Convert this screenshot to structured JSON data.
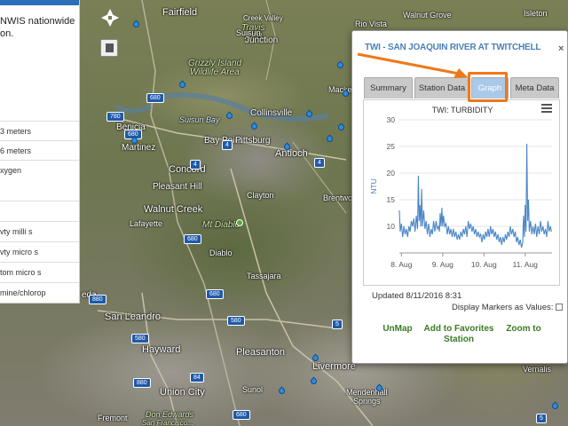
{
  "left_panel": {
    "intro_line1": "NWIS nationwide",
    "intro_line2": "on.",
    "rows": [
      "3 meters",
      "6 meters",
      "xygen",
      "",
      "vty milli s",
      "vty micro s",
      "tom micro s",
      "mine/chlorop"
    ]
  },
  "map": {
    "labels": [
      {
        "text": "Fairfield",
        "cls": ""
      },
      {
        "text": "Travis",
        "cls": "green"
      },
      {
        "text": "AFB",
        "cls": "green"
      },
      {
        "text": "Junction",
        "cls": ""
      },
      {
        "text": "Grizzly Island",
        "cls": "green"
      },
      {
        "text": "Wildlife Area",
        "cls": "green"
      },
      {
        "text": "Suisun Bay",
        "cls": "water"
      },
      {
        "text": "Collinsville",
        "cls": ""
      },
      {
        "text": "Benicia",
        "cls": ""
      },
      {
        "text": "Martinez",
        "cls": ""
      },
      {
        "text": "Bay Point",
        "cls": ""
      },
      {
        "text": "Pittsburg",
        "cls": ""
      },
      {
        "text": "Antioch",
        "cls": ""
      },
      {
        "text": "Concord",
        "cls": ""
      },
      {
        "text": "Pleasant Hill",
        "cls": ""
      },
      {
        "text": "Walnut Creek",
        "cls": ""
      },
      {
        "text": "Lafayette",
        "cls": ""
      },
      {
        "text": "Mt Diablo",
        "cls": "green"
      },
      {
        "text": "Diablo",
        "cls": ""
      },
      {
        "text": "Clayton",
        "cls": ""
      },
      {
        "text": "Tassajara",
        "cls": ""
      },
      {
        "text": "Brentwo",
        "cls": ""
      },
      {
        "text": "Mackey",
        "cls": ""
      },
      {
        "text": "Walnut Grove",
        "cls": ""
      },
      {
        "text": "Isleton",
        "cls": ""
      },
      {
        "text": "Rio Vista",
        "cls": ""
      },
      {
        "text": "eda",
        "cls": ""
      },
      {
        "text": "San Leandro",
        "cls": ""
      },
      {
        "text": "Hayward",
        "cls": ""
      },
      {
        "text": "Pleasanton",
        "cls": ""
      },
      {
        "text": "Livermore",
        "cls": ""
      },
      {
        "text": "Union City",
        "cls": ""
      },
      {
        "text": "Sunol",
        "cls": ""
      },
      {
        "text": "Mendenhall",
        "cls": ""
      },
      {
        "text": "Springs",
        "cls": ""
      },
      {
        "text": "Don Edwards",
        "cls": "green"
      },
      {
        "text": "San Francisco...",
        "cls": "green"
      },
      {
        "text": "Vernalis",
        "cls": ""
      },
      {
        "text": "Fremont",
        "cls": ""
      },
      {
        "text": "Creek Valley",
        "cls": ""
      },
      {
        "text": "Suisun",
        "cls": ""
      }
    ],
    "shields": [
      "680",
      "780",
      "680",
      "4",
      "4",
      "680",
      "880",
      "580",
      "680",
      "580",
      "880",
      "84",
      "680",
      "5",
      "4",
      "5"
    ]
  },
  "popup": {
    "title": "TWI - SAN JOAQUIN RIVER AT TWITCHELL",
    "close_label": "×",
    "tabs": [
      "Summary",
      "Station Data",
      "Graph",
      "Meta Data"
    ],
    "active_tab": "Graph",
    "highlight_color": "#f07818",
    "updated": "Updated 8/11/2016 8:31",
    "display_markers_label": "Display Markers as Values:",
    "links": {
      "unmap": "UnMap",
      "favorites_line1": "Add to Favorites",
      "favorites_line2": "Station",
      "zoom_line1": "Zoom to",
      "zoom_line2": ""
    }
  },
  "chart_data": {
    "type": "line",
    "title": "TWI: TURBIDITY",
    "xlabel": "",
    "ylabel": "NTU",
    "ylim": [
      5,
      30
    ],
    "yticks": [
      10,
      15,
      20,
      25,
      30
    ],
    "xticks": [
      {
        "label": "8. Aug",
        "day": 8
      },
      {
        "label": "9. Aug",
        "day": 9
      },
      {
        "label": "10. Aug",
        "day": 10
      },
      {
        "label": "11. Aug",
        "day": 11
      }
    ],
    "xlim_day": [
      7.95,
      11.65
    ],
    "line_color": "#4a86c8",
    "grid": true,
    "series": [
      {
        "name": "",
        "points": [
          [
            7.95,
            13
          ],
          [
            7.97,
            9
          ],
          [
            8.0,
            10.5
          ],
          [
            8.03,
            8
          ],
          [
            8.06,
            10
          ],
          [
            8.09,
            8.5
          ],
          [
            8.12,
            9.5
          ],
          [
            8.15,
            8
          ],
          [
            8.18,
            10
          ],
          [
            8.21,
            9
          ],
          [
            8.24,
            11
          ],
          [
            8.27,
            10
          ],
          [
            8.3,
            11.5
          ],
          [
            8.33,
            9
          ],
          [
            8.36,
            12
          ],
          [
            8.39,
            9.5
          ],
          [
            8.41,
            19.5
          ],
          [
            8.43,
            11
          ],
          [
            8.45,
            14
          ],
          [
            8.47,
            10
          ],
          [
            8.49,
            17
          ],
          [
            8.51,
            10
          ],
          [
            8.54,
            13
          ],
          [
            8.57,
            9.5
          ],
          [
            8.6,
            11
          ],
          [
            8.63,
            8.5
          ],
          [
            8.66,
            10.5
          ],
          [
            8.69,
            8
          ],
          [
            8.72,
            9.5
          ],
          [
            8.75,
            8.5
          ],
          [
            8.78,
            11
          ],
          [
            8.81,
            9
          ],
          [
            8.84,
            11
          ],
          [
            8.87,
            9.5
          ],
          [
            8.9,
            10
          ],
          [
            8.92,
            9
          ],
          [
            8.94,
            12.5
          ],
          [
            8.96,
            10
          ],
          [
            8.98,
            13.5
          ],
          [
            9.0,
            10
          ],
          [
            9.02,
            12
          ],
          [
            9.05,
            10
          ],
          [
            9.08,
            10.5
          ],
          [
            9.11,
            8.5
          ],
          [
            9.14,
            10
          ],
          [
            9.17,
            8.5
          ],
          [
            9.2,
            9.5
          ],
          [
            9.23,
            8
          ],
          [
            9.26,
            9.5
          ],
          [
            9.29,
            8
          ],
          [
            9.32,
            9
          ],
          [
            9.35,
            7.5
          ],
          [
            9.38,
            8.5
          ],
          [
            9.41,
            7.5
          ],
          [
            9.44,
            9
          ],
          [
            9.47,
            8
          ],
          [
            9.5,
            9.5
          ],
          [
            9.53,
            8.5
          ],
          [
            9.56,
            10
          ],
          [
            9.59,
            8
          ],
          [
            9.62,
            11
          ],
          [
            9.65,
            9.5
          ],
          [
            9.68,
            10.5
          ],
          [
            9.71,
            9
          ],
          [
            9.74,
            10
          ],
          [
            9.77,
            8.5
          ],
          [
            9.8,
            9.5
          ],
          [
            9.83,
            8
          ],
          [
            9.86,
            9
          ],
          [
            9.89,
            8
          ],
          [
            9.92,
            8.5
          ],
          [
            9.95,
            7
          ],
          [
            9.98,
            8.5
          ],
          [
            10.01,
            7.5
          ],
          [
            10.04,
            9
          ],
          [
            10.07,
            8
          ],
          [
            10.1,
            9.5
          ],
          [
            10.13,
            8
          ],
          [
            10.16,
            10
          ],
          [
            10.19,
            8.5
          ],
          [
            10.22,
            9.5
          ],
          [
            10.25,
            8
          ],
          [
            10.28,
            9
          ],
          [
            10.31,
            7.5
          ],
          [
            10.34,
            8.5
          ],
          [
            10.37,
            7
          ],
          [
            10.4,
            8
          ],
          [
            10.43,
            6.5
          ],
          [
            10.46,
            8
          ],
          [
            10.49,
            7
          ],
          [
            10.52,
            8.5
          ],
          [
            10.55,
            7.5
          ],
          [
            10.58,
            9
          ],
          [
            10.61,
            8
          ],
          [
            10.64,
            10
          ],
          [
            10.67,
            8.5
          ],
          [
            10.7,
            9.5
          ],
          [
            10.73,
            8
          ],
          [
            10.76,
            9
          ],
          [
            10.79,
            7
          ],
          [
            10.82,
            8
          ],
          [
            10.85,
            6.5
          ],
          [
            10.88,
            7.5
          ],
          [
            10.91,
            6
          ],
          [
            10.94,
            7
          ],
          [
            10.96,
            12
          ],
          [
            10.98,
            8
          ],
          [
            11.0,
            14
          ],
          [
            11.02,
            9
          ],
          [
            11.04,
            25.5
          ],
          [
            11.06,
            11
          ],
          [
            11.08,
            15
          ],
          [
            11.1,
            9
          ],
          [
            11.13,
            11
          ],
          [
            11.16,
            8.5
          ],
          [
            11.19,
            10
          ],
          [
            11.22,
            8.5
          ],
          [
            11.25,
            10.5
          ],
          [
            11.28,
            8
          ],
          [
            11.31,
            10
          ],
          [
            11.34,
            8.5
          ],
          [
            11.37,
            11
          ],
          [
            11.4,
            9
          ],
          [
            11.43,
            10
          ],
          [
            11.46,
            8.5
          ],
          [
            11.49,
            9.5
          ],
          [
            11.52,
            8
          ],
          [
            11.55,
            11
          ],
          [
            11.58,
            9
          ],
          [
            11.61,
            10
          ],
          [
            11.64,
            9
          ]
        ]
      }
    ]
  }
}
